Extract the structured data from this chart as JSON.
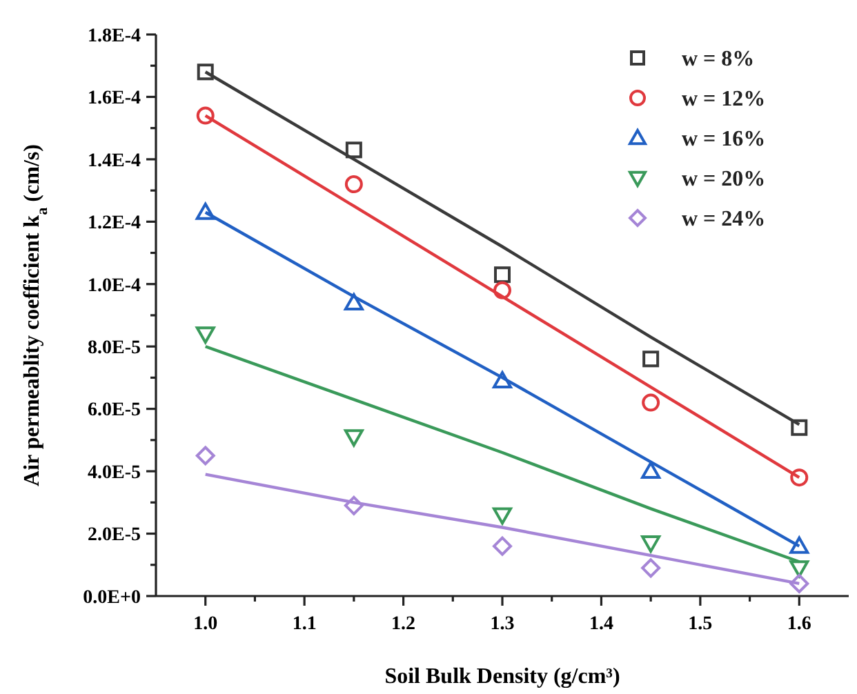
{
  "chart_data": {
    "type": "scatter",
    "xlabel": "Soil Bulk Density (g/cm³)",
    "ylabel": "Air permeablity coefficient k$_{a}$ (cm/s)",
    "xlim": [
      0.95,
      1.65
    ],
    "xticks": [
      {
        "value": 1,
        "label": "1.0"
      },
      {
        "value": 1.05,
        "label": null
      },
      {
        "value": 1.1,
        "label": "1.1"
      },
      {
        "value": 1.15,
        "label": null
      },
      {
        "value": 1.2,
        "label": "1.2"
      },
      {
        "value": 1.25,
        "label": null
      },
      {
        "value": 1.3,
        "label": "1.3"
      },
      {
        "value": 1.35,
        "label": null
      },
      {
        "value": 1.4,
        "label": "1.4"
      },
      {
        "value": 1.45,
        "label": null
      },
      {
        "value": 1.5,
        "label": "1.5"
      },
      {
        "value": 1.55,
        "label": null
      },
      {
        "value": 1.6,
        "label": "1.6"
      }
    ],
    "ylim": [
      0,
      0.00018
    ],
    "yticks": [
      {
        "value": 0,
        "label": "0.0E+0"
      },
      {
        "value": 1e-05,
        "label": null
      },
      {
        "value": 2e-05,
        "label": "2.0E-5"
      },
      {
        "value": 3e-05,
        "label": null
      },
      {
        "value": 4e-05,
        "label": "4.0E-5"
      },
      {
        "value": 5e-05,
        "label": null
      },
      {
        "value": 6e-05,
        "label": "6.0E-5"
      },
      {
        "value": 7e-05,
        "label": null
      },
      {
        "value": 8e-05,
        "label": "8.0E-5"
      },
      {
        "value": 9e-05,
        "label": null
      },
      {
        "value": 0.0001,
        "label": "1.0E-4"
      },
      {
        "value": 0.00011,
        "label": null
      },
      {
        "value": 0.00012,
        "label": "1.2E-4"
      },
      {
        "value": 0.00013,
        "label": null
      },
      {
        "value": 0.00014,
        "label": "1.4E-4"
      },
      {
        "value": 0.00015,
        "label": null
      },
      {
        "value": 0.00016,
        "label": "1.6E-4"
      },
      {
        "value": 0.00017,
        "label": null
      },
      {
        "value": 0.00018,
        "label": "1.8E-4"
      }
    ],
    "x": [
      1,
      1.15,
      1.3,
      1.45,
      1.6
    ],
    "grid": false,
    "legend": "top right",
    "series": [
      {
        "name": "w = 8%",
        "color": "#3a3a3a",
        "marker": "square",
        "values": [
          0.000168,
          0.000143,
          0.000103,
          7.6e-05,
          5.4e-05
        ]
      },
      {
        "name": "w = 12%",
        "color": "#e0393e",
        "marker": "circle",
        "values": [
          0.000154,
          0.000132,
          9.8e-05,
          6.2e-05,
          3.8e-05
        ]
      },
      {
        "name": "w = 16%",
        "color": "#2160c4",
        "marker": "triangle",
        "values": [
          0.000123,
          9.4e-05,
          6.9e-05,
          4e-05,
          1.6e-05
        ]
      },
      {
        "name": "w = 20%",
        "color": "#3a9a5a",
        "marker": "triangle-down",
        "values": [
          8.4e-05,
          5.1e-05,
          2.6e-05,
          1.7e-05,
          9e-06
        ]
      },
      {
        "name": "w = 24%",
        "color": "#a585d6",
        "marker": "diamond",
        "values": [
          4.5e-05,
          2.9e-05,
          1.6e-05,
          9e-06,
          4e-06
        ]
      },
      {
        "type": "line",
        "color": "#3a3a3a",
        "marker": "none",
        "values": [
          0.000168,
          0.00014,
          0.000112,
          8.3e-05,
          5.5e-05
        ]
      },
      {
        "type": "line",
        "color": "#e0393e",
        "marker": "none",
        "values": [
          0.000154,
          0.000125,
          9.6e-05,
          6.7e-05,
          3.8e-05
        ]
      },
      {
        "type": "line",
        "color": "#2160c4",
        "marker": "none",
        "values": [
          0.000123,
          9.6e-05,
          7e-05,
          4.3e-05,
          1.6e-05
        ]
      },
      {
        "type": "line",
        "color": "#3a9a5a",
        "marker": "none",
        "values": [
          8e-05,
          6.3e-05,
          4.6e-05,
          2.8e-05,
          1.1e-05
        ]
      },
      {
        "type": "line",
        "color": "#a585d6",
        "marker": "none",
        "values": [
          3.9e-05,
          3e-05,
          2.2e-05,
          1.3e-05,
          4e-06
        ]
      }
    ]
  }
}
